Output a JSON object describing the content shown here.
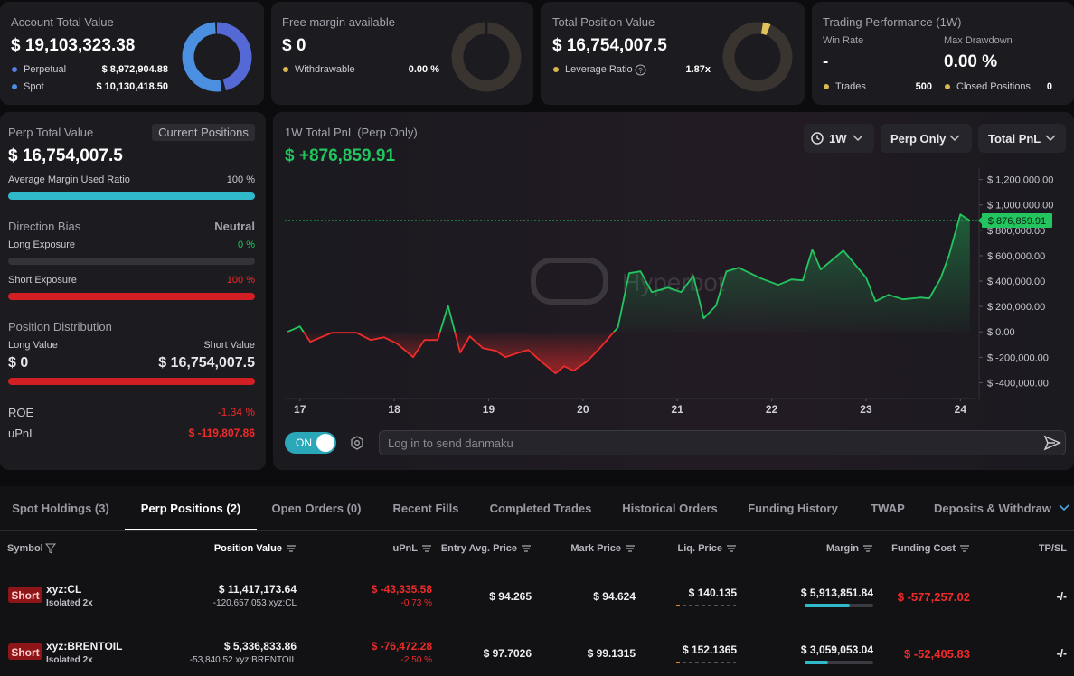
{
  "account_card": {
    "title": "Account Total Value",
    "value": "$ 19,103,323.38",
    "rows": [
      {
        "label": "Perpetual",
        "value": "$ 8,972,904.88"
      },
      {
        "label": "Spot",
        "value": "$ 10,130,418.50"
      }
    ]
  },
  "free_margin_card": {
    "title": "Free margin available",
    "value": "$ 0",
    "row": {
      "label": "Withdrawable",
      "value": "0.00 %"
    }
  },
  "position_card": {
    "title": "Total Position Value",
    "value": "$ 16,754,007.5",
    "row": {
      "label": "Leverage Ratio",
      "value": "1.87x"
    }
  },
  "performance_card": {
    "title": "Trading Performance (1W)",
    "win_rate": {
      "label": "Win Rate",
      "value": "-"
    },
    "max_drawdown": {
      "label": "Max Drawdown",
      "value": "0.00 %"
    },
    "trades": {
      "label": "Trades",
      "value": "500"
    },
    "closed_positions": {
      "label": "Closed Positions",
      "value": "0"
    }
  },
  "left_panel": {
    "title": "Perp Total Value",
    "button": "Current Positions",
    "value": "$ 16,754,007.5",
    "margin_ratio": {
      "label": "Average Margin Used Ratio",
      "value": "100 %"
    },
    "direction_bias": {
      "label": "Direction Bias",
      "value": "Neutral"
    },
    "long_exposure": {
      "label": "Long Exposure",
      "value": "0 %"
    },
    "short_exposure": {
      "label": "Short Exposure",
      "value": "100 %"
    },
    "distribution": {
      "title": "Position Distribution",
      "long_label": "Long Value",
      "short_label": "Short Value",
      "long_value": "$ 0",
      "short_value": "$ 16,754,007.5"
    },
    "roe": {
      "label": "ROE",
      "value": "-1.34 %"
    },
    "upnl": {
      "label": "uPnL",
      "value": "$ -119,807.86"
    }
  },
  "chart_panel": {
    "title": "1W Total PnL (Perp Only)",
    "headline": "$ +876,859.91",
    "dropdowns": [
      "1W",
      "Perp Only",
      "Total PnL"
    ],
    "toggle": "ON",
    "input_placeholder": "Log in to send danmaku",
    "watermark": "Hyperbot"
  },
  "chart_data": {
    "type": "line",
    "color_up": "#22c55e",
    "color_down": "#ef2b2b",
    "x": [
      16.87,
      17.0,
      17.11,
      17.34,
      17.6,
      17.75,
      17.89,
      18.03,
      18.2,
      18.32,
      18.46,
      18.57,
      18.7,
      18.8,
      18.94,
      19.08,
      19.18,
      19.32,
      19.42,
      19.56,
      19.71,
      19.8,
      19.9,
      20.04,
      20.18,
      20.37,
      20.49,
      20.61,
      20.73,
      20.9,
      21.04,
      21.17,
      21.28,
      21.41,
      21.52,
      21.65,
      21.89,
      22.07,
      22.21,
      22.33,
      22.43,
      22.52,
      22.76,
      23.0,
      23.1,
      23.24,
      23.39,
      23.58,
      23.67,
      23.79,
      23.88,
      24.0,
      24.1
    ],
    "values": [
      0,
      42700,
      -78300,
      -7100,
      -7100,
      -64000,
      -42700,
      -92500,
      -199300,
      -64000,
      -64000,
      206400,
      -163700,
      -35600,
      -128100,
      -149500,
      -199300,
      -163700,
      -142300,
      -234900,
      -327400,
      -270500,
      -306000,
      -234900,
      -128100,
      35600,
      462600,
      476900,
      313200,
      348700,
      313200,
      441300,
      106800,
      206400,
      476900,
      505400,
      420000,
      370100,
      412800,
      405700,
      647700,
      491100,
      640600,
      427000,
      241900,
      291800,
      256200,
      270500,
      263300,
      419900,
      604900,
      925300,
      876860
    ],
    "current": {
      "value": 876859.91,
      "label": "$ 876,859.91"
    },
    "xlim": [
      16.84,
      24.15
    ],
    "xticks": [
      17,
      18,
      19,
      20,
      21,
      22,
      23,
      24
    ],
    "ylim": [
      -525000,
      1290000
    ],
    "yticks": [
      {
        "value": 1200000,
        "label": "$ 1,200,000.00"
      },
      {
        "value": 1000000,
        "label": "$ 1,000,000.00"
      },
      {
        "value": 800000,
        "label": "$ 800,000.00"
      },
      {
        "value": 600000,
        "label": "$ 600,000.00"
      },
      {
        "value": 400000,
        "label": "$ 400,000.00"
      },
      {
        "value": 200000,
        "label": "$ 200,000.00"
      },
      {
        "value": 0,
        "label": "$ 0.00"
      },
      {
        "value": -200000,
        "label": "$ -200,000.00"
      },
      {
        "value": -400000,
        "label": "$ -400,000.00"
      }
    ]
  },
  "tabs": [
    "Spot Holdings (3)",
    "Perp Positions (2)",
    "Open Orders (0)",
    "Recent Fills",
    "Completed Trades",
    "Historical Orders",
    "Funding History",
    "TWAP",
    "Deposits & Withdraw"
  ],
  "table": {
    "columns": [
      "Symbol",
      "Position Value",
      "uPnL",
      "Entry Avg. Price",
      "Mark Price",
      "Liq. Price",
      "Margin",
      "Funding Cost",
      "TP/SL"
    ],
    "rows": [
      {
        "side": "Short",
        "symbol": "xyz:CL",
        "mode": "Isolated 2x",
        "position_value": "$ 11,417,173.64",
        "position_size": "-120,657.053 xyz:CL",
        "upnl": "$ -43,335.58",
        "upnl_pct": "-0.73 %",
        "entry": "$ 94.265",
        "mark": "$ 94.624",
        "liq": "$ 140.135",
        "margin": "$ 5,913,851.84",
        "funding": "$ -577,257.02",
        "tpsl": "-/-"
      },
      {
        "side": "Short",
        "symbol": "xyz:BRENTOIL",
        "mode": "Isolated 2x",
        "position_value": "$ 5,336,833.86",
        "position_size": "-53,840.52 xyz:BRENTOIL",
        "upnl": "$ -76,472.28",
        "upnl_pct": "-2.50 %",
        "entry": "$ 97.7026",
        "mark": "$ 99.1315",
        "liq": "$ 152.1365",
        "margin": "$ 3,059,053.04",
        "funding": "$ -52,405.83",
        "tpsl": "-/-"
      }
    ]
  }
}
